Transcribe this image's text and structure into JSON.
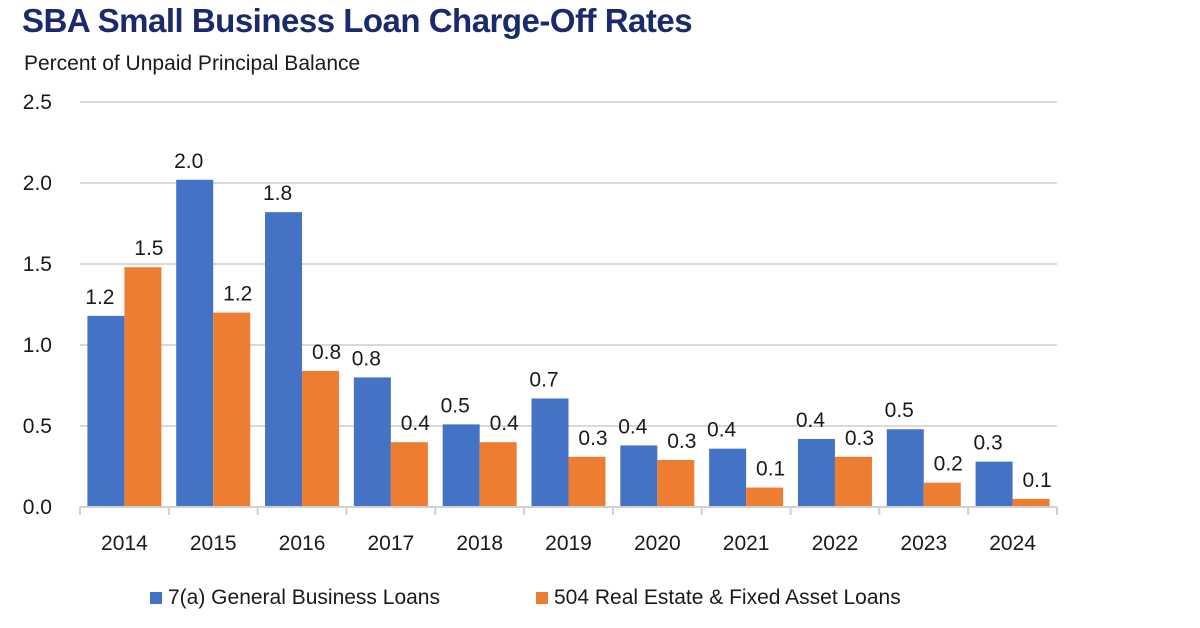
{
  "chart_data": {
    "type": "bar",
    "title": "SBA Small Business Loan Charge-Off Rates",
    "subtitle": "Percent of Unpaid Principal Balance",
    "xlabel": "",
    "ylabel": "Percent of Unpaid Principal Balance",
    "ylim": [
      0,
      2.5
    ],
    "yticks": [
      "0.0",
      "0.5",
      "1.0",
      "1.5",
      "2.0",
      "2.5"
    ],
    "ytick_values": [
      0,
      0.5,
      1.0,
      1.5,
      2.0,
      2.5
    ],
    "grid": true,
    "legend_position": "bottom",
    "categories": [
      "2014",
      "2015",
      "2016",
      "2017",
      "2018",
      "2019",
      "2020",
      "2021",
      "2022",
      "2023",
      "2024"
    ],
    "series": [
      {
        "name": "7(a) General Business Loans",
        "color": "#4472C4",
        "values": [
          1.18,
          2.02,
          1.82,
          0.8,
          0.51,
          0.67,
          0.38,
          0.36,
          0.42,
          0.48,
          0.28
        ],
        "labels": [
          "1.2",
          "2.0",
          "1.8",
          "0.8",
          "0.5",
          "0.7",
          "0.4",
          "0.4",
          "0.4",
          "0.5",
          "0.3"
        ]
      },
      {
        "name": "504 Real Estate & Fixed Asset Loans",
        "color": "#ED7D31",
        "values": [
          1.48,
          1.2,
          0.84,
          0.4,
          0.4,
          0.31,
          0.29,
          0.12,
          0.31,
          0.15,
          0.05
        ],
        "labels": [
          "1.5",
          "1.2",
          "0.8",
          "0.4",
          "0.4",
          "0.3",
          "0.3",
          "0.1",
          "0.3",
          "0.2",
          "0.1"
        ]
      }
    ]
  },
  "colors": {
    "title": "#1a2a6c",
    "gridline": "#d9d9d9",
    "text": "#1a1a1a"
  }
}
